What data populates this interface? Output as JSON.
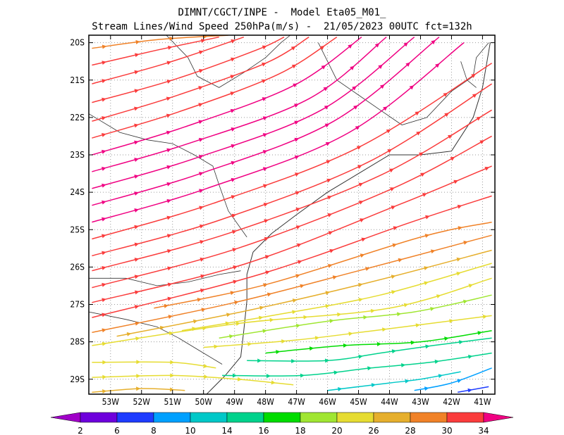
{
  "chart_data": {
    "type": "streamline-map",
    "title": "DIMNT/CGCT/INPE -  Model Eta05_M01_",
    "subtitle": "Stream Lines/Wind Speed 250hPa(m/s) -  21/05/2023 00UTC fct=132h",
    "x_ticks": [
      "53W",
      "52W",
      "51W",
      "50W",
      "49W",
      "48W",
      "47W",
      "46W",
      "45W",
      "44W",
      "43W",
      "42W",
      "41W"
    ],
    "x_tick_values": [
      -53,
      -52,
      -51,
      -50,
      -49,
      -48,
      -47,
      -46,
      -45,
      -44,
      -43,
      -42,
      -41
    ],
    "y_ticks": [
      "20S",
      "21S",
      "22S",
      "23S",
      "24S",
      "25S",
      "26S",
      "27S",
      "28S",
      "29S"
    ],
    "y_tick_values": [
      -20,
      -21,
      -22,
      -23,
      -24,
      -25,
      -26,
      -27,
      -28,
      -29
    ],
    "xlim": [
      -53.7,
      -40.6
    ],
    "ylim": [
      -29.4,
      -19.8
    ],
    "grid": true,
    "colorbar": {
      "labels": [
        "2",
        "6",
        "8",
        "10",
        "14",
        "16",
        "18",
        "20",
        "26",
        "28",
        "30",
        "34"
      ],
      "colors": [
        "#a000c8",
        "#6e00dc",
        "#1e3cff",
        "#00a0ff",
        "#00c8c8",
        "#00d28c",
        "#00dc00",
        "#a0e632",
        "#e6dc32",
        "#e6af2d",
        "#f08228",
        "#fa3c3c",
        "#f00082"
      ]
    },
    "streamlines": [
      {
        "speed": 28,
        "points": [
          [
            -53.6,
            -20.15
          ],
          [
            -51.5,
            -19.92
          ],
          [
            -49.2,
            -19.8
          ]
        ]
      },
      {
        "speed": 30,
        "points": [
          [
            -53.6,
            -20.6
          ],
          [
            -51.5,
            -20.2
          ],
          [
            -49.5,
            -19.85
          ]
        ]
      },
      {
        "speed": 30,
        "points": [
          [
            -53.6,
            -21.1
          ],
          [
            -51.2,
            -20.55
          ],
          [
            -48.7,
            -19.85
          ]
        ]
      },
      {
        "speed": 30,
        "points": [
          [
            -53.6,
            -21.6
          ],
          [
            -51.0,
            -21.0
          ],
          [
            -48.3,
            -20.2
          ],
          [
            -47.4,
            -19.85
          ]
        ]
      },
      {
        "speed": 32,
        "points": [
          [
            -53.6,
            -22.1
          ],
          [
            -51.0,
            -21.45
          ],
          [
            -48.0,
            -20.55
          ],
          [
            -46.6,
            -19.85
          ]
        ]
      },
      {
        "speed": 33,
        "points": [
          [
            -53.6,
            -22.55
          ],
          [
            -50.8,
            -21.85
          ],
          [
            -47.6,
            -20.85
          ],
          [
            -45.7,
            -19.85
          ]
        ]
      },
      {
        "speed": 34,
        "points": [
          [
            -53.6,
            -23.0
          ],
          [
            -50.6,
            -22.25
          ],
          [
            -47.1,
            -21.15
          ],
          [
            -44.9,
            -19.85
          ]
        ]
      },
      {
        "speed": 34,
        "points": [
          [
            -53.6,
            -23.45
          ],
          [
            -50.5,
            -22.7
          ],
          [
            -46.6,
            -21.5
          ],
          [
            -44.1,
            -19.85
          ]
        ]
      },
      {
        "speed": 34,
        "points": [
          [
            -53.6,
            -23.9
          ],
          [
            -50.3,
            -23.1
          ],
          [
            -46.2,
            -21.8
          ],
          [
            -43.2,
            -19.85
          ]
        ]
      },
      {
        "speed": 34,
        "points": [
          [
            -53.6,
            -24.35
          ],
          [
            -50.1,
            -23.5
          ],
          [
            -45.8,
            -22.1
          ],
          [
            -42.4,
            -19.85
          ]
        ]
      },
      {
        "speed": 34,
        "points": [
          [
            -53.6,
            -24.8
          ],
          [
            -49.9,
            -23.9
          ],
          [
            -45.3,
            -22.4
          ],
          [
            -41.6,
            -20.0
          ]
        ]
      },
      {
        "speed": 33,
        "points": [
          [
            -53.6,
            -25.25
          ],
          [
            -49.7,
            -24.3
          ],
          [
            -45.0,
            -22.8
          ],
          [
            -40.7,
            -20.55
          ]
        ]
      },
      {
        "speed": 32,
        "points": [
          [
            -53.6,
            -25.7
          ],
          [
            -49.5,
            -24.75
          ],
          [
            -44.7,
            -23.2
          ],
          [
            -40.7,
            -21.1
          ]
        ]
      },
      {
        "speed": 32,
        "points": [
          [
            -53.6,
            -26.1
          ],
          [
            -49.2,
            -25.1
          ],
          [
            -44.3,
            -23.55
          ],
          [
            -40.7,
            -21.8
          ]
        ]
      },
      {
        "speed": 31,
        "points": [
          [
            -53.6,
            -26.55
          ],
          [
            -48.9,
            -25.5
          ],
          [
            -43.9,
            -23.9
          ],
          [
            -40.7,
            -22.5
          ]
        ]
      },
      {
        "speed": 30,
        "points": [
          [
            -53.6,
            -26.95
          ],
          [
            -48.6,
            -25.9
          ],
          [
            -43.6,
            -24.3
          ],
          [
            -40.7,
            -23.3
          ]
        ]
      },
      {
        "speed": 30,
        "points": [
          [
            -53.6,
            -27.35
          ],
          [
            -48.2,
            -26.2
          ],
          [
            -43.3,
            -24.8
          ],
          [
            -40.7,
            -24.1
          ]
        ]
      },
      {
        "speed": 29,
        "points": [
          [
            -51.6,
            -27.1
          ],
          [
            -47.9,
            -26.45
          ],
          [
            -43.0,
            -25.2
          ],
          [
            -40.7,
            -24.8
          ]
        ]
      },
      {
        "speed": 28,
        "points": [
          [
            -53.6,
            -27.75
          ],
          [
            -49.0,
            -26.95
          ],
          [
            -45.0,
            -26.1
          ],
          [
            -40.7,
            -25.15
          ]
        ]
      },
      {
        "speed": 26,
        "points": [
          [
            -52.8,
            -27.85
          ],
          [
            -48.5,
            -27.15
          ],
          [
            -44.6,
            -26.4
          ],
          [
            -40.7,
            -25.55
          ]
        ]
      },
      {
        "speed": 22,
        "points": [
          [
            -50.7,
            -27.7
          ],
          [
            -47.8,
            -27.3
          ],
          [
            -44.3,
            -26.75
          ],
          [
            -40.7,
            -25.9
          ]
        ]
      },
      {
        "speed": 21,
        "points": [
          [
            -53.6,
            -28.1
          ],
          [
            -48.8,
            -27.5
          ],
          [
            -44.0,
            -27.1
          ],
          [
            -40.7,
            -26.3
          ]
        ]
      },
      {
        "speed": 18,
        "points": [
          [
            -49.5,
            -27.9
          ],
          [
            -46.0,
            -27.45
          ],
          [
            -43.2,
            -27.2
          ],
          [
            -40.7,
            -26.75
          ]
        ]
      },
      {
        "speed": 20,
        "points": [
          [
            -50.0,
            -28.15
          ],
          [
            -47.0,
            -27.95
          ],
          [
            -44.5,
            -27.7
          ],
          [
            -40.7,
            -27.3
          ]
        ]
      },
      {
        "speed": 16,
        "points": [
          [
            -48.0,
            -28.3
          ],
          [
            -45.5,
            -28.1
          ],
          [
            -43.0,
            -28.0
          ],
          [
            -40.7,
            -27.7
          ]
        ]
      },
      {
        "speed": 15,
        "points": [
          [
            -48.6,
            -28.5
          ],
          [
            -46.0,
            -28.5
          ],
          [
            -44.3,
            -28.3
          ],
          [
            -42.6,
            -28.1
          ],
          [
            -40.7,
            -27.9
          ]
        ]
      },
      {
        "speed": 14,
        "points": [
          [
            -49.4,
            -28.9
          ],
          [
            -46.8,
            -28.9
          ],
          [
            -44.6,
            -28.7
          ],
          [
            -42.7,
            -28.55
          ],
          [
            -40.7,
            -28.3
          ]
        ]
      },
      {
        "speed": 12,
        "points": [
          [
            -46.0,
            -29.3
          ],
          [
            -44.0,
            -29.1
          ],
          [
            -43.0,
            -29.0
          ],
          [
            -41.7,
            -28.8
          ]
        ]
      },
      {
        "speed": 8,
        "points": [
          [
            -43.2,
            -29.3
          ],
          [
            -42.0,
            -29.1
          ],
          [
            -40.7,
            -28.7
          ]
        ]
      },
      {
        "speed": 6,
        "points": [
          [
            -41.8,
            -29.35
          ],
          [
            -40.8,
            -29.2
          ]
        ]
      },
      {
        "speed": 25,
        "points": [
          [
            -53.6,
            -28.55
          ],
          [
            -51.0,
            -28.55
          ],
          [
            -49.6,
            -28.7
          ]
        ]
      },
      {
        "speed": 24,
        "points": [
          [
            -53.6,
            -28.95
          ],
          [
            -51.0,
            -28.9
          ],
          [
            -48.9,
            -29.0
          ],
          [
            -47.1,
            -29.15
          ]
        ]
      },
      {
        "speed": 26,
        "points": [
          [
            -53.6,
            -29.35
          ],
          [
            -52.0,
            -29.25
          ],
          [
            -50.6,
            -29.3
          ]
        ]
      }
    ],
    "coastline": [
      [
        [
          -40.75,
          -20.0
        ],
        [
          -41.0,
          -21.2
        ],
        [
          -41.3,
          -22.0
        ],
        [
          -42.0,
          -22.9
        ],
        [
          -43.0,
          -23.0
        ],
        [
          -44.0,
          -23.0
        ],
        [
          -45.0,
          -23.5
        ],
        [
          -46.0,
          -24.0
        ],
        [
          -47.0,
          -24.6
        ],
        [
          -47.8,
          -25.1
        ],
        [
          -48.4,
          -25.6
        ],
        [
          -48.6,
          -26.2
        ],
        [
          -48.6,
          -26.9
        ],
        [
          -48.7,
          -27.7
        ],
        [
          -48.8,
          -28.4
        ],
        [
          -49.3,
          -28.9
        ],
        [
          -49.9,
          -29.4
        ]
      ]
    ],
    "borders": [
      [
        [
          -53.7,
          -21.9
        ],
        [
          -52.7,
          -22.4
        ],
        [
          -51.8,
          -22.6
        ],
        [
          -51.0,
          -22.7
        ],
        [
          -50.3,
          -23.0
        ],
        [
          -49.7,
          -23.3
        ],
        [
          -49.5,
          -23.8
        ],
        [
          -49.2,
          -24.5
        ],
        [
          -48.6,
          -25.2
        ]
      ],
      [
        [
          -53.7,
          -26.3
        ],
        [
          -52.5,
          -26.3
        ],
        [
          -51.5,
          -26.5
        ],
        [
          -50.5,
          -26.4
        ],
        [
          -49.5,
          -26.2
        ],
        [
          -48.8,
          -26.1
        ]
      ],
      [
        [
          -53.7,
          -27.2
        ],
        [
          -52.5,
          -27.4
        ],
        [
          -51.5,
          -27.6
        ],
        [
          -50.8,
          -27.9
        ],
        [
          -50.0,
          -28.3
        ],
        [
          -49.4,
          -28.6
        ]
      ],
      [
        [
          -51.2,
          -19.8
        ],
        [
          -50.5,
          -20.4
        ],
        [
          -50.2,
          -20.9
        ],
        [
          -49.5,
          -21.2
        ],
        [
          -48.7,
          -20.8
        ],
        [
          -48.0,
          -20.4
        ],
        [
          -47.5,
          -20.0
        ],
        [
          -47.2,
          -19.8
        ]
      ],
      [
        [
          -45.0,
          -21.4
        ],
        [
          -44.3,
          -21.8
        ],
        [
          -43.6,
          -22.2
        ],
        [
          -42.8,
          -22.0
        ],
        [
          -42.0,
          -21.3
        ],
        [
          -41.3,
          -20.9
        ],
        [
          -41.2,
          -20.4
        ],
        [
          -40.8,
          -20.0
        ]
      ],
      [
        [
          -46.3,
          -20.0
        ],
        [
          -46.0,
          -20.5
        ],
        [
          -45.7,
          -21.0
        ],
        [
          -45.0,
          -21.4
        ]
      ],
      [
        [
          -41.7,
          -20.5
        ],
        [
          -41.5,
          -21.0
        ],
        [
          -41.2,
          -21.2
        ]
      ]
    ]
  }
}
